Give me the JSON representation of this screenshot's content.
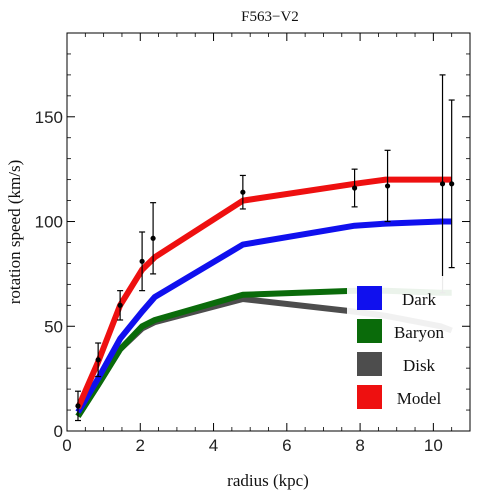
{
  "chart_data": {
    "type": "line",
    "title": "F563−V2",
    "xlabel": "radius (kpc)",
    "ylabel": "rotation speed (km/s)",
    "xlim": [
      0,
      11
    ],
    "ylim": [
      0,
      190
    ],
    "x_ticks": [
      0,
      2,
      4,
      6,
      8,
      10
    ],
    "x_tick_labels": [
      "0",
      "2",
      "4",
      "6",
      "8",
      "10"
    ],
    "y_ticks": [
      0,
      50,
      100,
      150
    ],
    "y_tick_labels": [
      "0",
      "50",
      "100",
      "150"
    ],
    "grid": false,
    "legend_position": "bottom-right",
    "colors": {
      "Dark": "#1010ee",
      "Baryon": "#0a6b0a",
      "Disk": "#4d4d4d",
      "Model": "#ee1010"
    },
    "series": [
      {
        "name": "Dark",
        "x": [
          0.3,
          0.85,
          1.45,
          2.05,
          2.4,
          4.8,
          7.85,
          8.7,
          10.2,
          10.5
        ],
        "y": [
          9,
          25,
          44,
          57,
          64,
          89,
          98,
          99,
          100,
          100
        ]
      },
      {
        "name": "Baryon",
        "x": [
          0.3,
          0.85,
          1.45,
          2.05,
          2.4,
          4.8,
          7.85,
          8.7,
          10.2,
          10.5
        ],
        "y": [
          7,
          22,
          39,
          50,
          53,
          65,
          67,
          67,
          66,
          66
        ]
      },
      {
        "name": "Disk",
        "x": [
          0.3,
          0.85,
          1.45,
          2.05,
          2.4,
          4.8,
          7.85,
          8.7,
          10.2,
          10.5
        ],
        "y": [
          7,
          22,
          39,
          49,
          52,
          63,
          57,
          55,
          50,
          48
        ]
      },
      {
        "name": "Model",
        "x": [
          0.3,
          0.85,
          1.45,
          2.05,
          2.4,
          4.8,
          7.85,
          8.7,
          10.2,
          10.5
        ],
        "y": [
          11,
          33,
          60,
          77,
          83,
          110,
          118,
          120,
          120,
          120
        ]
      }
    ],
    "observations": {
      "x": [
        0.3,
        0.85,
        1.45,
        2.05,
        2.35,
        4.8,
        7.85,
        8.75,
        10.25,
        10.5
      ],
      "y": [
        12,
        34,
        60,
        81,
        92,
        114,
        116,
        117,
        118,
        118
      ],
      "err": [
        7,
        8,
        7,
        14,
        17,
        8,
        9,
        17,
        52,
        40
      ]
    },
    "legend": [
      "Dark",
      "Baryon",
      "Disk",
      "Model"
    ]
  }
}
